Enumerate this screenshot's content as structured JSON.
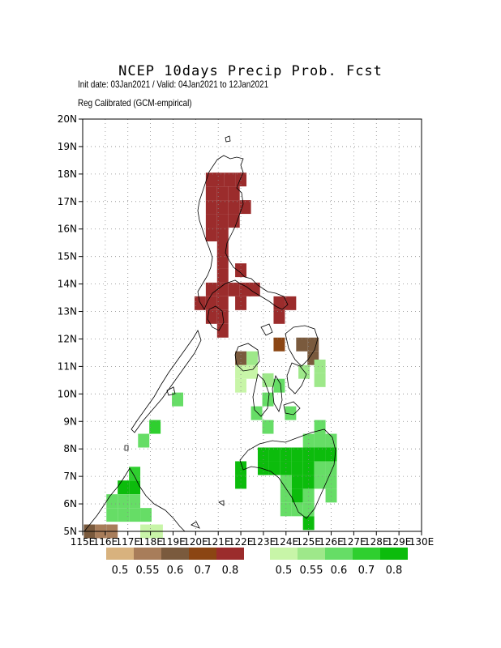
{
  "title": "NCEP 10days Precip Prob. Fcst",
  "subtitle_line1": "Init date: 03Jan2021 / Valid: 04Jan2021 to 12Jan2021",
  "subtitle_line2": "Reg Calibrated (GCM-empirical)",
  "lat_labels": [
    "5N",
    "6N",
    "7N",
    "8N",
    "9N",
    "10N",
    "11N",
    "12N",
    "13N",
    "14N",
    "15N",
    "16N",
    "17N",
    "18N",
    "19N",
    "20N"
  ],
  "lon_labels": [
    "115E",
    "116E",
    "117E",
    "118E",
    "119E",
    "120E",
    "121E",
    "122E",
    "123E",
    "124E",
    "125E",
    "126E",
    "127E",
    "128E",
    "129E",
    "130E"
  ],
  "dry_legend": {
    "colors": [
      "#d8b27e",
      "#a87d5a",
      "#7a5a3d",
      "#8b4513",
      "#9b2c2c"
    ],
    "labels": [
      "0.5",
      "0.55",
      "0.6",
      "0.7",
      "0.8"
    ]
  },
  "wet_legend": {
    "colors": [
      "#c8f5a8",
      "#9ee88a",
      "#66dd66",
      "#2fcf2f",
      "#0cbc0c"
    ],
    "labels": [
      "0.5",
      "0.55",
      "0.6",
      "0.7",
      "0.8"
    ]
  },
  "chart_data": {
    "type": "heatmap",
    "xlim": [
      115,
      130
    ],
    "ylim": [
      5,
      20
    ],
    "cell_size_deg": 0.5,
    "grid": "dotted",
    "cells": [
      {
        "lon": 122.0,
        "lat": 17.8,
        "cat": "dry-0.8"
      },
      {
        "lon": 121.5,
        "lat": 17.8,
        "cat": "dry-0.8"
      },
      {
        "lon": 121.0,
        "lat": 17.8,
        "cat": "dry-0.8"
      },
      {
        "lon": 120.7,
        "lat": 17.8,
        "cat": "dry-0.8"
      },
      {
        "lon": 120.7,
        "lat": 17.3,
        "cat": "dry-0.8"
      },
      {
        "lon": 121.2,
        "lat": 17.3,
        "cat": "dry-0.8"
      },
      {
        "lon": 121.7,
        "lat": 17.3,
        "cat": "dry-0.8"
      },
      {
        "lon": 120.7,
        "lat": 16.8,
        "cat": "dry-0.8"
      },
      {
        "lon": 121.2,
        "lat": 16.8,
        "cat": "dry-0.8"
      },
      {
        "lon": 121.7,
        "lat": 16.8,
        "cat": "dry-0.8"
      },
      {
        "lon": 122.2,
        "lat": 16.8,
        "cat": "dry-0.8"
      },
      {
        "lon": 120.7,
        "lat": 16.3,
        "cat": "dry-0.8"
      },
      {
        "lon": 121.2,
        "lat": 16.3,
        "cat": "dry-0.8"
      },
      {
        "lon": 121.7,
        "lat": 16.3,
        "cat": "dry-0.8"
      },
      {
        "lon": 120.7,
        "lat": 15.8,
        "cat": "dry-0.8"
      },
      {
        "lon": 121.2,
        "lat": 15.8,
        "cat": "dry-0.8"
      },
      {
        "lon": 121.2,
        "lat": 15.3,
        "cat": "dry-0.8"
      },
      {
        "lon": 121.2,
        "lat": 14.8,
        "cat": "dry-0.8"
      },
      {
        "lon": 121.2,
        "lat": 14.3,
        "cat": "dry-0.8"
      },
      {
        "lon": 122.0,
        "lat": 14.5,
        "cat": "dry-0.8"
      },
      {
        "lon": 120.7,
        "lat": 13.8,
        "cat": "dry-0.8"
      },
      {
        "lon": 121.2,
        "lat": 13.8,
        "cat": "dry-0.8"
      },
      {
        "lon": 121.7,
        "lat": 13.8,
        "cat": "dry-0.8"
      },
      {
        "lon": 122.2,
        "lat": 13.8,
        "cat": "dry-0.8"
      },
      {
        "lon": 122.6,
        "lat": 13.8,
        "cat": "dry-0.8"
      },
      {
        "lon": 120.2,
        "lat": 13.3,
        "cat": "dry-0.8"
      },
      {
        "lon": 120.7,
        "lat": 13.3,
        "cat": "dry-0.8"
      },
      {
        "lon": 121.2,
        "lat": 13.3,
        "cat": "dry-0.8"
      },
      {
        "lon": 122.0,
        "lat": 13.3,
        "cat": "dry-0.8"
      },
      {
        "lon": 120.7,
        "lat": 12.8,
        "cat": "dry-0.8"
      },
      {
        "lon": 121.2,
        "lat": 12.8,
        "cat": "dry-0.8"
      },
      {
        "lon": 121.2,
        "lat": 12.3,
        "cat": "dry-0.8"
      },
      {
        "lon": 123.7,
        "lat": 13.3,
        "cat": "dry-0.8"
      },
      {
        "lon": 124.2,
        "lat": 13.3,
        "cat": "dry-0.8"
      },
      {
        "lon": 123.7,
        "lat": 12.8,
        "cat": "dry-0.8"
      },
      {
        "lon": 123.7,
        "lat": 11.8,
        "cat": "dry-0.7"
      },
      {
        "lon": 124.7,
        "lat": 11.8,
        "cat": "dry-0.6"
      },
      {
        "lon": 125.2,
        "lat": 11.8,
        "cat": "dry-0.6"
      },
      {
        "lon": 125.2,
        "lat": 11.3,
        "cat": "dry-0.6"
      },
      {
        "lon": 122.0,
        "lat": 11.3,
        "cat": "dry-0.6"
      },
      {
        "lon": 115.3,
        "lat": 5.0,
        "cat": "dry-0.6"
      },
      {
        "lon": 115.8,
        "lat": 5.0,
        "cat": "dry-0.55"
      },
      {
        "lon": 116.3,
        "lat": 5.0,
        "cat": "dry-0.55"
      },
      {
        "lon": 122.0,
        "lat": 10.8,
        "cat": "wet-0.5"
      },
      {
        "lon": 122.5,
        "lat": 10.8,
        "cat": "wet-0.5"
      },
      {
        "lon": 122.0,
        "lat": 10.3,
        "cat": "wet-0.5"
      },
      {
        "lon": 122.5,
        "lat": 11.3,
        "cat": "wet-0.55"
      },
      {
        "lon": 123.2,
        "lat": 10.5,
        "cat": "wet-0.55"
      },
      {
        "lon": 124.8,
        "lat": 10.8,
        "cat": "wet-0.55"
      },
      {
        "lon": 125.5,
        "lat": 10.5,
        "cat": "wet-0.55"
      },
      {
        "lon": 125.5,
        "lat": 11.0,
        "cat": "wet-0.55"
      },
      {
        "lon": 119.2,
        "lat": 9.8,
        "cat": "wet-0.6"
      },
      {
        "lon": 123.7,
        "lat": 10.3,
        "cat": "wet-0.6"
      },
      {
        "lon": 123.2,
        "lat": 9.8,
        "cat": "wet-0.6"
      },
      {
        "lon": 122.7,
        "lat": 9.3,
        "cat": "wet-0.6"
      },
      {
        "lon": 123.2,
        "lat": 8.8,
        "cat": "wet-0.6"
      },
      {
        "lon": 124.2,
        "lat": 9.3,
        "cat": "wet-0.6"
      },
      {
        "lon": 118.2,
        "lat": 8.8,
        "cat": "wet-0.7"
      },
      {
        "lon": 117.7,
        "lat": 8.3,
        "cat": "wet-0.6"
      },
      {
        "lon": 125.5,
        "lat": 8.8,
        "cat": "wet-0.6"
      },
      {
        "lon": 125.0,
        "lat": 8.3,
        "cat": "wet-0.6"
      },
      {
        "lon": 125.5,
        "lat": 8.3,
        "cat": "wet-0.6"
      },
      {
        "lon": 126.0,
        "lat": 8.3,
        "cat": "wet-0.6"
      },
      {
        "lon": 122.0,
        "lat": 7.3,
        "cat": "wet-0.8"
      },
      {
        "lon": 122.0,
        "lat": 6.8,
        "cat": "wet-0.8"
      },
      {
        "lon": 123.0,
        "lat": 7.8,
        "cat": "wet-0.8"
      },
      {
        "lon": 123.5,
        "lat": 7.8,
        "cat": "wet-0.8"
      },
      {
        "lon": 124.0,
        "lat": 7.8,
        "cat": "wet-0.8"
      },
      {
        "lon": 124.5,
        "lat": 7.8,
        "cat": "wet-0.8"
      },
      {
        "lon": 125.0,
        "lat": 7.8,
        "cat": "wet-0.8"
      },
      {
        "lon": 125.5,
        "lat": 7.8,
        "cat": "wet-0.8"
      },
      {
        "lon": 126.0,
        "lat": 7.8,
        "cat": "wet-0.8"
      },
      {
        "lon": 123.0,
        "lat": 7.3,
        "cat": "wet-0.8"
      },
      {
        "lon": 123.5,
        "lat": 7.3,
        "cat": "wet-0.8"
      },
      {
        "lon": 124.0,
        "lat": 7.3,
        "cat": "wet-0.8"
      },
      {
        "lon": 124.5,
        "lat": 7.3,
        "cat": "wet-0.8"
      },
      {
        "lon": 125.0,
        "lat": 7.3,
        "cat": "wet-0.8"
      },
      {
        "lon": 124.5,
        "lat": 6.8,
        "cat": "wet-0.8"
      },
      {
        "lon": 125.0,
        "lat": 6.8,
        "cat": "wet-0.8"
      },
      {
        "lon": 124.5,
        "lat": 6.3,
        "cat": "wet-0.8"
      },
      {
        "lon": 125.5,
        "lat": 7.3,
        "cat": "wet-0.6"
      },
      {
        "lon": 126.0,
        "lat": 7.3,
        "cat": "wet-0.6"
      },
      {
        "lon": 125.5,
        "lat": 6.8,
        "cat": "wet-0.6"
      },
      {
        "lon": 126.0,
        "lat": 6.8,
        "cat": "wet-0.6"
      },
      {
        "lon": 126.0,
        "lat": 6.3,
        "cat": "wet-0.6"
      },
      {
        "lon": 124.0,
        "lat": 6.8,
        "cat": "wet-0.6"
      },
      {
        "lon": 124.0,
        "lat": 6.3,
        "cat": "wet-0.6"
      },
      {
        "lon": 124.0,
        "lat": 5.8,
        "cat": "wet-0.6"
      },
      {
        "lon": 124.5,
        "lat": 5.8,
        "cat": "wet-0.6"
      },
      {
        "lon": 125.0,
        "lat": 6.3,
        "cat": "wet-0.6"
      },
      {
        "lon": 125.0,
        "lat": 5.8,
        "cat": "wet-0.6"
      },
      {
        "lon": 125.0,
        "lat": 5.3,
        "cat": "wet-0.8"
      },
      {
        "lon": 117.3,
        "lat": 7.1,
        "cat": "wet-0.7"
      },
      {
        "lon": 116.8,
        "lat": 6.6,
        "cat": "wet-0.8"
      },
      {
        "lon": 117.3,
        "lat": 6.6,
        "cat": "wet-0.8"
      },
      {
        "lon": 116.3,
        "lat": 6.1,
        "cat": "wet-0.6"
      },
      {
        "lon": 116.8,
        "lat": 6.1,
        "cat": "wet-0.6"
      },
      {
        "lon": 117.3,
        "lat": 6.1,
        "cat": "wet-0.6"
      },
      {
        "lon": 116.3,
        "lat": 5.6,
        "cat": "wet-0.6"
      },
      {
        "lon": 116.8,
        "lat": 5.6,
        "cat": "wet-0.6"
      },
      {
        "lon": 117.3,
        "lat": 5.6,
        "cat": "wet-0.6"
      },
      {
        "lon": 117.8,
        "lat": 5.6,
        "cat": "wet-0.6"
      },
      {
        "lon": 117.8,
        "lat": 5.0,
        "cat": "wet-0.5"
      },
      {
        "lon": 118.3,
        "lat": 5.0,
        "cat": "wet-0.5"
      }
    ]
  }
}
